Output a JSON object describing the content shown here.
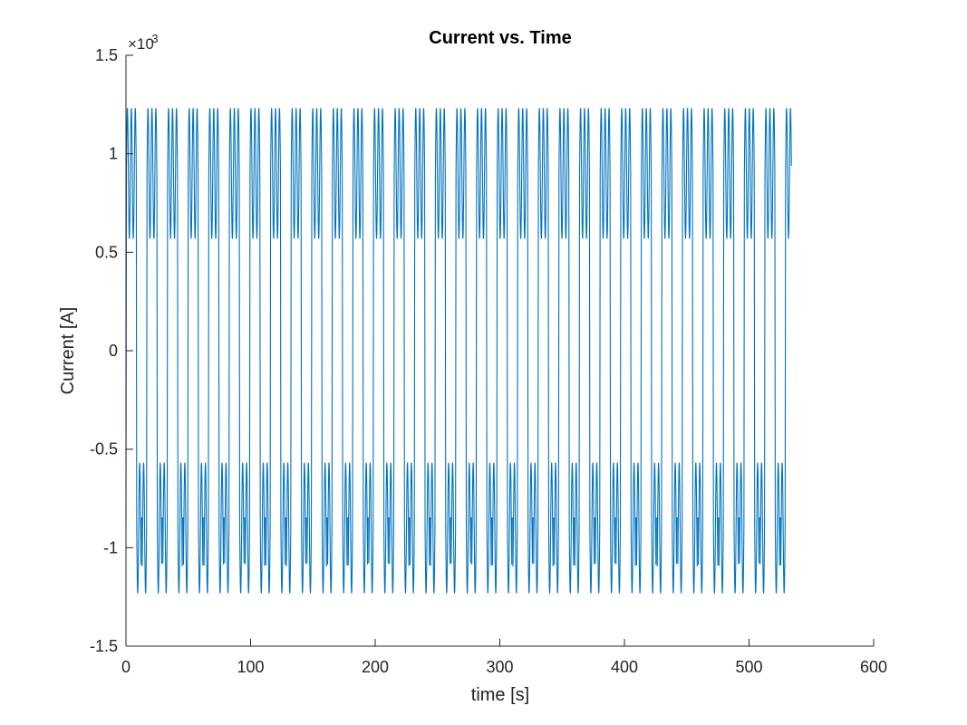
{
  "chart_data": {
    "type": "line",
    "title": "Current vs. Time",
    "xlabel": "time [s]",
    "ylabel": "Current [A]",
    "y_exponent_label": "×10",
    "y_exponent_power": "-3",
    "y_scale_factor": 0.001,
    "xlim": [
      0,
      600
    ],
    "ylim": [
      -1.5,
      1.5
    ],
    "xticks": [
      0,
      100,
      200,
      300,
      400,
      500,
      600
    ],
    "xtick_labels": [
      "0",
      "100",
      "200",
      "300",
      "400",
      "500",
      "600"
    ],
    "yticks": [
      -1.5,
      -1,
      -0.5,
      0,
      0.5,
      1,
      1.5
    ],
    "ytick_labels": [
      "-1.5",
      "-1",
      "-0.5",
      "0",
      "0.5",
      "1",
      "1.5"
    ],
    "grid": false,
    "legend": "none",
    "box": false,
    "series": [
      {
        "color": "#0072BD",
        "x_start": 0,
        "x_end": 534,
        "period": 16.53,
        "high_level": 0.9,
        "ripple_amplitude": 0.33,
        "ripple_peaks_per_half": 3,
        "mid_dip": 0.85,
        "peak": 1.26,
        "trough": -1.26
      }
    ]
  }
}
